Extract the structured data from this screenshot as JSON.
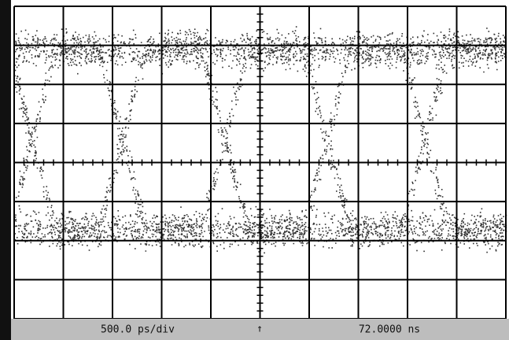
{
  "status_bar": {
    "timebase": "500.0 ps/div",
    "marker": "↑",
    "time": "72.0000 ns"
  }
}
